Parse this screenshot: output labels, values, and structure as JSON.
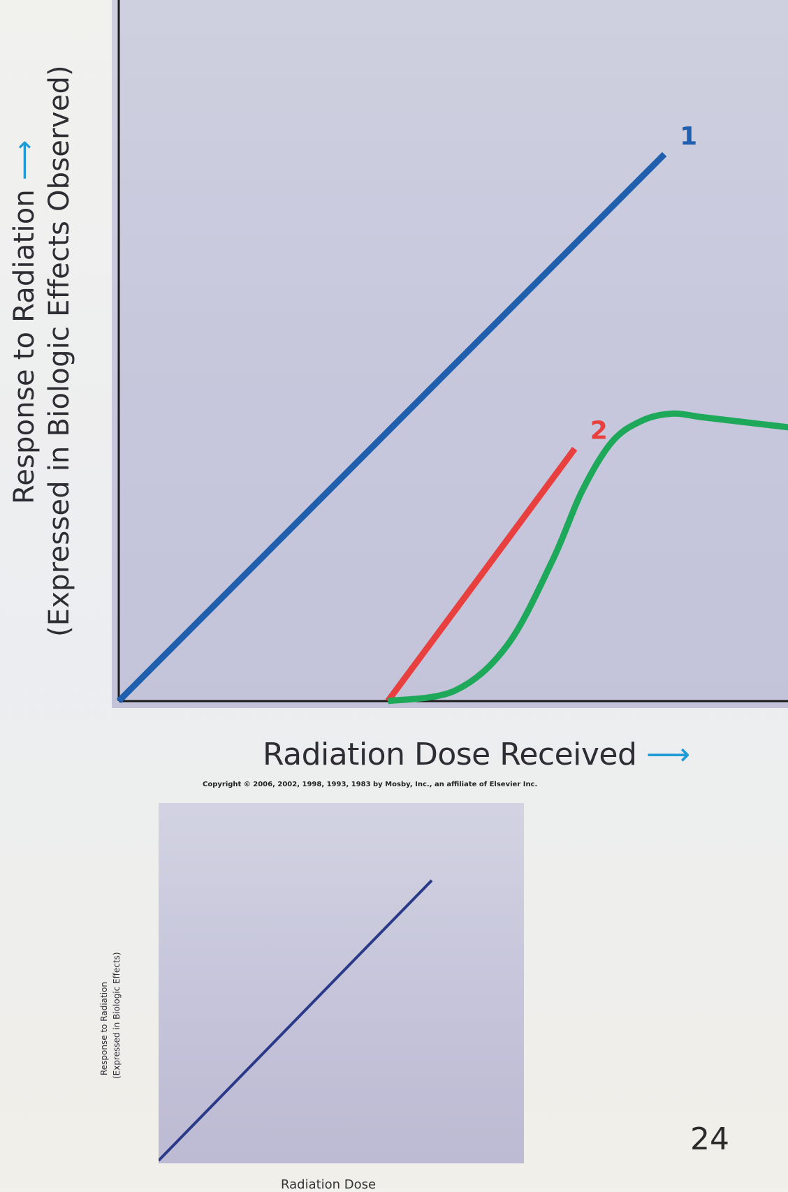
{
  "chart_data": [
    {
      "type": "line",
      "xlabel": "Radiation Dose Received",
      "ylabel_line1": "Response to Radiation",
      "ylabel_line2": "(Expressed in Biologic Effects Observed)",
      "arrow_glyph": "⟶",
      "xlim": [
        0,
        10
      ],
      "ylim": [
        0,
        10
      ],
      "grid": false,
      "legend": "none (curves numbered by inline labels)",
      "colors": {
        "line1": "#1f5fae",
        "line2": "#e8403e",
        "curve3": "#1ea85a",
        "axis": "#1b1b1b"
      },
      "series": [
        {
          "label": "1",
          "color": "#1f5fae",
          "x": [
            0,
            7.3
          ],
          "y": [
            0,
            7.8
          ]
        },
        {
          "label": "2",
          "color": "#e8403e",
          "x": [
            3.6,
            6.1
          ],
          "y": [
            0,
            3.6
          ]
        },
        {
          "label": "",
          "color": "#1ea85a",
          "x": [
            3.6,
            4.5,
            5.2,
            5.8,
            6.2,
            6.6,
            7.0,
            7.4,
            7.8,
            8.2,
            8.6,
            9.0
          ],
          "y": [
            0,
            0.15,
            0.8,
            2.0,
            3.0,
            3.7,
            4.0,
            4.1,
            4.05,
            4.0,
            3.95,
            3.9
          ]
        }
      ]
    },
    {
      "type": "line",
      "ylabel_line1": "Response to Radiation",
      "ylabel_line2": "(Expressed in Biologic Effects)",
      "xlabel": "Radiation Dose",
      "xlim": [
        0,
        10
      ],
      "ylim": [
        0,
        10
      ],
      "grid": false,
      "colors": {
        "line": "#2b3a88"
      },
      "series": [
        {
          "label": "",
          "color": "#2b3a88",
          "x": [
            0,
            8.5
          ],
          "y": [
            0,
            8.5
          ]
        }
      ]
    }
  ],
  "copyright": "Copyright © 2006, 2002, 1998, 1993, 1983 by Mosby, Inc., an affiliate of Elsevier Inc.",
  "page_number": "24"
}
